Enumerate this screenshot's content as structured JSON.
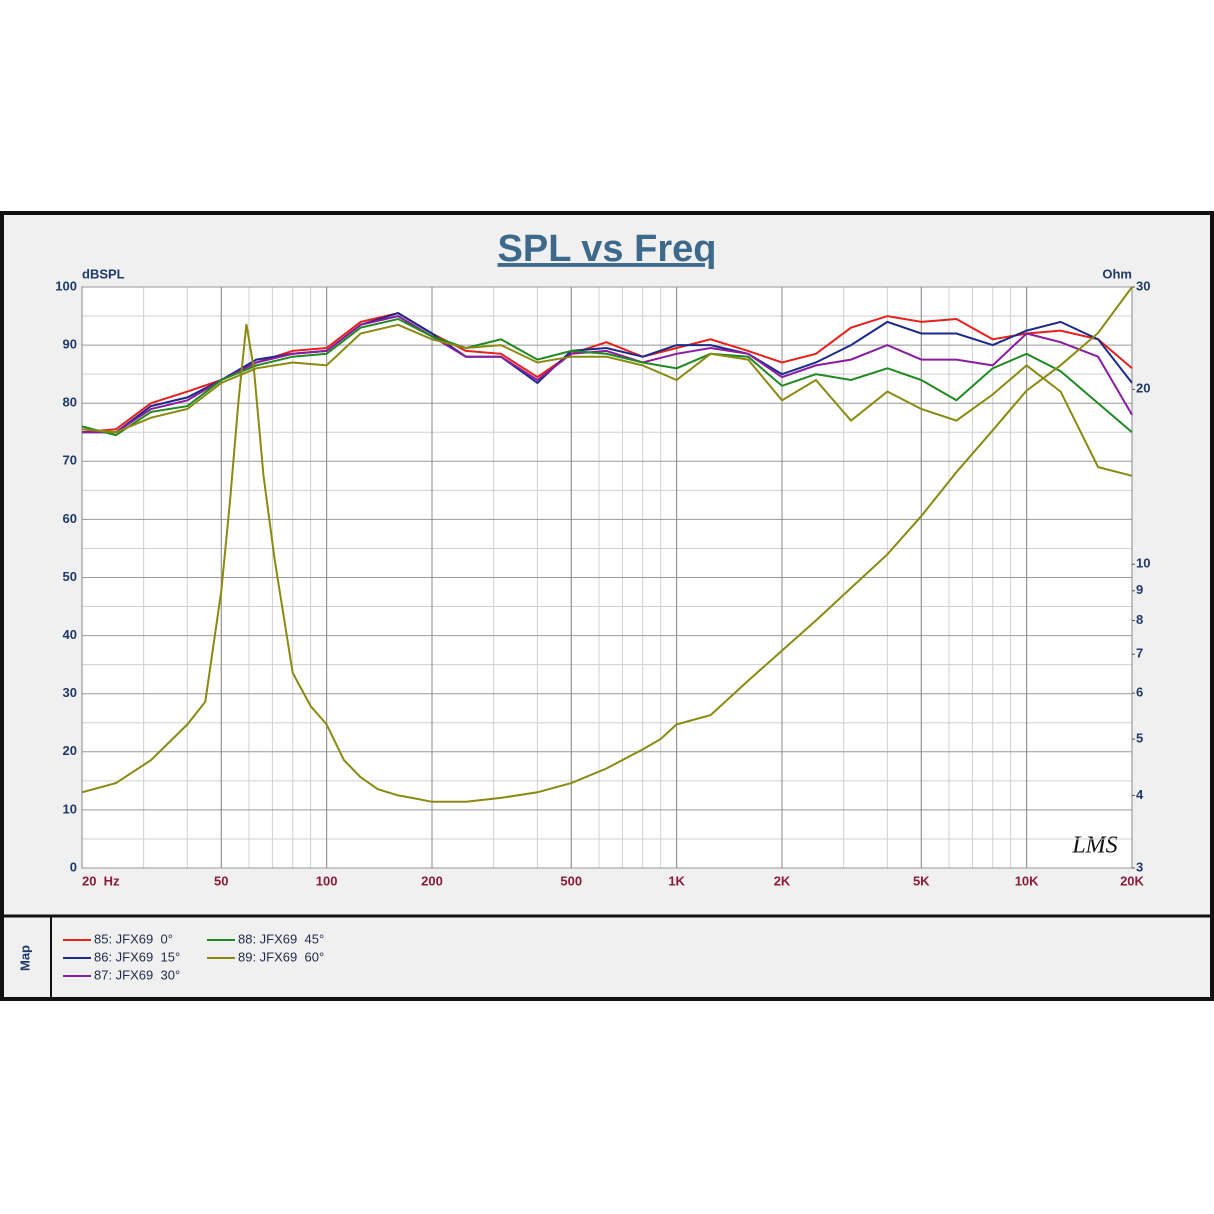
{
  "chart_data": {
    "type": "line",
    "title": "SPL vs Freq",
    "y_label": "dBSPL",
    "y2_label": "Ohm",
    "panel_label": "Map",
    "watermark": "LMS",
    "x_log": true,
    "y2_log": true,
    "grid": true,
    "xlim": [
      20,
      20000
    ],
    "ylim": [
      0,
      100
    ],
    "y2lim": [
      3,
      30
    ],
    "xticks": [
      {
        "value": 20,
        "label": "20  Hz"
      },
      50,
      100,
      200,
      500,
      {
        "value": 1000,
        "label": "1K"
      },
      {
        "value": 2000,
        "label": "2K"
      },
      {
        "value": 5000,
        "label": "5K"
      },
      {
        "value": 10000,
        "label": "10K"
      },
      {
        "value": 20000,
        "label": "20K"
      }
    ],
    "yticks": [
      0,
      10,
      20,
      30,
      40,
      50,
      60,
      70,
      80,
      90,
      100
    ],
    "y2ticks": [
      3,
      4,
      5,
      6,
      7,
      8,
      9,
      10,
      20,
      30
    ],
    "x": [
      20,
      25,
      31.5,
      40,
      50,
      63,
      80,
      100,
      125,
      160,
      200,
      250,
      315,
      400,
      500,
      630,
      800,
      1000,
      1250,
      1600,
      2000,
      2500,
      3150,
      4000,
      5000,
      6300,
      8000,
      10000,
      12500,
      16000,
      20000
    ],
    "series": [
      {
        "name": "85: JFX69  0°",
        "color": "#e8201c",
        "values": [
          75,
          75.5,
          80,
          82,
          84,
          87,
          89,
          89.5,
          94,
          95.5,
          92,
          89,
          88.5,
          84.5,
          88.5,
          90.5,
          88,
          89.5,
          91,
          89,
          87,
          88.5,
          93,
          95,
          94,
          94.5,
          91,
          92,
          92.5,
          91,
          86
        ]
      },
      {
        "name": "86: JFX69  15°",
        "color": "#1c2a8a",
        "values": [
          75,
          75,
          79.5,
          81,
          84,
          87.5,
          88.5,
          89,
          93.5,
          95.5,
          92,
          88,
          88,
          83.5,
          89,
          89.5,
          88,
          90,
          90,
          88.5,
          85,
          87,
          90,
          94,
          92,
          92,
          90,
          92.5,
          94,
          91,
          83.5
        ]
      },
      {
        "name": "87: JFX69  30°",
        "color": "#8a1ca0",
        "values": [
          75,
          75,
          79,
          80.5,
          84,
          87,
          88.5,
          89,
          93.5,
          95,
          91.5,
          88,
          88,
          84,
          88.5,
          89,
          87,
          88.5,
          89.5,
          88.5,
          84.5,
          86.5,
          87.5,
          90,
          87.5,
          87.5,
          86.5,
          92,
          90.5,
          88,
          78
        ]
      },
      {
        "name": "88: JFX69  45°",
        "color": "#1f8a1f",
        "values": [
          76,
          74.5,
          78.5,
          79.5,
          84,
          86.5,
          88,
          88.5,
          93,
          94.5,
          91.5,
          89.5,
          91,
          87.5,
          89,
          88.5,
          87,
          86,
          88.5,
          88,
          83,
          85,
          84,
          86,
          84,
          80.5,
          86,
          88.5,
          85.5,
          80,
          75
        ]
      },
      {
        "name": "89: JFX69  60°",
        "color": "#8a8a10",
        "values": [
          75.5,
          75,
          77.5,
          79,
          83.5,
          86,
          87,
          86.5,
          92,
          93.5,
          91,
          89.5,
          90,
          87,
          88,
          88,
          86.5,
          84,
          88.5,
          87.5,
          80.5,
          84,
          77,
          82,
          79,
          77,
          81.5,
          86.5,
          82,
          69,
          67.5
        ]
      },
      {
        "color": "#8a8a10",
        "axis": "y2",
        "x": [
          20,
          25,
          31.5,
          40,
          45,
          50,
          53,
          56,
          59,
          62,
          66,
          71,
          80,
          90,
          100,
          112,
          125,
          140,
          160,
          180,
          200,
          250,
          315,
          400,
          500,
          630,
          800,
          900,
          1000,
          1250,
          1600,
          2000,
          2500,
          3150,
          4000,
          5000,
          6300,
          8000,
          10000,
          12500,
          16000,
          20000
        ],
        "values": [
          4.05,
          4.2,
          4.6,
          5.3,
          5.8,
          9.0,
          12.9,
          19.1,
          25.9,
          21.6,
          14.2,
          10.2,
          6.5,
          5.7,
          5.3,
          4.6,
          4.3,
          4.1,
          4.0,
          3.95,
          3.9,
          3.9,
          3.96,
          4.05,
          4.2,
          4.45,
          4.8,
          5.0,
          5.3,
          5.5,
          6.3,
          7.1,
          8.0,
          9.1,
          10.4,
          12.1,
          14.4,
          17.0,
          19.9,
          22,
          25,
          30
        ]
      }
    ]
  }
}
